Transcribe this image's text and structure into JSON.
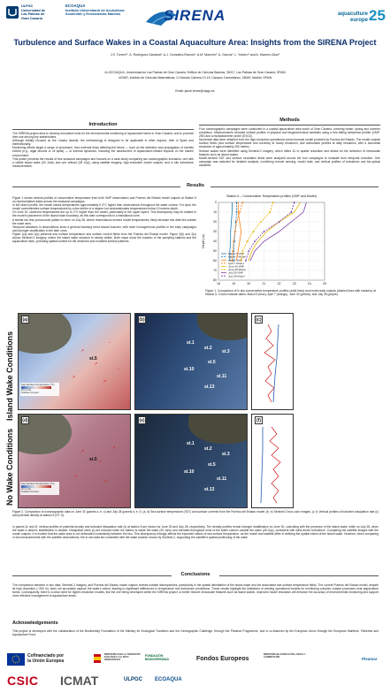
{
  "header": {
    "ulpgc_lines": [
      "ULPGC",
      "Universidad de",
      "Las Palmas de",
      "Gran Canaria"
    ],
    "ecoaqua_lines": [
      "ECOAQUA",
      "Instituto Universitario de Acuicultura",
      "Sostenible y Ecosistemas Marinos"
    ],
    "project": "SIRENA",
    "conference_lines": [
      "aquaculture",
      "europe"
    ],
    "conference_number": "25"
  },
  "title": "Turbulence and Surface Wakes in a Coastal Aquaculture Area: Insights from the SIRENA Project",
  "authors": "J.S. Torres¹*, A. Rodríguez-Santana¹, A.J. González-Ramos¹, A.M. Mancho², A. García¹, L. Yubero¹ and A. Marrero-Díaz¹",
  "affiliations": [
    "¹IU-ECOAQUA, Universidad de Las Palmas de Gran Canaria, Edificio de Ciencias Básicas, 35017, Las Palmas de Gran Canaria, SPAIN",
    "²ICMAT, Instituto de Ciencias Matemáticas, C/ Nicolás Cabrera 13-15, Campus Cantoblanco, 28049, Madrid, SPAIN"
  ],
  "email": "Email: jacob.torres@ulpgc.es",
  "introduction": {
    "heading": "Introduction",
    "paragraphs": [
      "The SIRENA project aims to develop innovative tools for the environmental monitoring of aquaculture farms in Gran Canaria, and to promote their use among key stakeholders.",
      "Although initially focused on the Canary Islands, the methodology is designed to be applicable in other regions, both in Spain and internationally.",
      "Monitoring efforts target a range of processes, from external flows affecting the farms — such as the detection and propagation of harmful events (e.g., algal blooms or oil spills) — to internal dynamics, including the assessment of aquaculture-related impacts on the marine environment.",
      "This poster presents the results of four seasonal campaigns and focuses on a case study comparing two oceanographic scenarios: one with a visible island wake (30 June) and one without (28 July), using satellite imagery, high-resolution model outputs, and in situ turbulence measurements."
    ]
  },
  "methods": {
    "heading": "Methods",
    "paragraphs": [
      "Four oceanographic campaigns were conducted in a coastal aquaculture area south of Gran Canaria, covering winter, spring and summer conditions. Measurements included vertical profiles of physical and biogeochemical variables using a free-falling turbulence profiler (VMP-250) and a multiparameter probe (EXO2).",
      "Numerical data were obtained from the high-resolution operational ocean forecast model provided by Puertos del Estado. The model outputs surface fields (sea surface temperature and currents) at hourly resolution, and subsurface profiles at daily resolution, with a horizontal resolution of approximately 250 meters.",
      "Surface wakes were identified using Sentinel-2 imagery, which offers 10 m spatial resolution and allows for the detection of mesoscale features such as island wakes.",
      "Model-derived SST and surface circulation fields were analyzed across the four campaigns to evaluate their temporal evolution. One campaign was selected for detailed analysis, combining remote sensing, model data, and vertical profiles of turbulence and bio-optical variables."
    ]
  },
  "results": {
    "heading": "Results",
    "paragraphs": [
      "Figure 1 shows vertical profiles of conservative temperature from both VMP observations and Puertos del Estado model outputs at Station 5 on representative dates across the seasonal campaigns.",
      "In the March profile, the model shows temperatures approximately 0.3°C higher than observations throughout the water column. For April, the model overestimates surface temperatures by a few tenths of a degree but underestimates temperatures below 10 meters depth.",
      "On June 30, observed temperatures are up to 2°C higher than the model, particularly in the upper layers. This discrepancy may be related to the model's placement of the island wake boundary, as this date corresponds to a transitional zone.",
      "A similar but less pronounced pattern is seen on July 28, where observations exceed model temperatures, likely because this date lies outside the wake area.",
      "Temporal variations in observations show a general warming trend toward summer, with more homogeneous profiles in the early campaigns and stronger stratification in the later ones.",
      "Figure 2(a) and 2(d) presents sea surface temperature and surface current fields from the Puertos del Estado model. Figure 2(b) and 2(c) shows Sentinel-2 imagery, where the island wake structure is clearly visible. Both maps show the location of the sampling stations and the aquaculture sites, providing spatial context for the observed and modeled surface patterns."
    ]
  },
  "figure1": {
    "caption": "Figure 1. Comparison of in situ conservative temperature profiles (solid lines) and model daily outputs (dashed lines with markers) at Station 5. Colors indicate dates: March 5 (blue), April 7 (orange), June 30 (yellow), and July 28 (purple)."
  },
  "chart_data": {
    "type": "line",
    "title": "Station 5 – Conservative Temperature profiles (VMP and Model)",
    "xlabel": "",
    "ylabel": "Depth (m)",
    "xlim": [
      18,
      25
    ],
    "ylim": [
      0,
      80
    ],
    "y_inverted": true,
    "grid": true,
    "legend_placement": "bottom-left",
    "series": [
      {
        "name": "March 5 VMP",
        "style": "solid",
        "color": "#1f77b4",
        "x": [
          18.9,
          18.9,
          18.85,
          18.8,
          18.8,
          18.75,
          18.75
        ],
        "y": [
          0,
          10,
          20,
          30,
          40,
          50,
          60
        ]
      },
      {
        "name": "March 5 Model",
        "style": "dashed",
        "color": "#1f77b4",
        "x": [
          19.2,
          19.2,
          19.15,
          19.1,
          19.05,
          19.0,
          19.0
        ],
        "y": [
          0,
          10,
          20,
          30,
          40,
          50,
          60
        ]
      },
      {
        "name": "April 7 VMP",
        "style": "solid",
        "color": "#ff7f0e",
        "x": [
          19.3,
          19.3,
          19.4,
          19.5,
          19.4,
          19.3,
          19.2
        ],
        "y": [
          0,
          10,
          20,
          30,
          40,
          50,
          60
        ]
      },
      {
        "name": "April 7 Model",
        "style": "dashed",
        "color": "#ff7f0e",
        "x": [
          19.6,
          19.4,
          19.2,
          19.1,
          19.0,
          18.95,
          18.9
        ],
        "y": [
          0,
          10,
          20,
          30,
          40,
          50,
          60
        ]
      },
      {
        "name": "June 30 VMP",
        "style": "solid",
        "color": "#e8b400",
        "x": [
          23.4,
          23.0,
          22.0,
          21.2,
          20.6,
          20.2,
          20.0
        ],
        "y": [
          0,
          10,
          20,
          30,
          40,
          50,
          60
        ]
      },
      {
        "name": "June 30 Model",
        "style": "dashed",
        "color": "#e8b400",
        "x": [
          21.6,
          21.4,
          20.8,
          20.3,
          19.9,
          19.6,
          19.5
        ],
        "y": [
          0,
          10,
          20,
          30,
          40,
          50,
          60
        ]
      },
      {
        "name": "July 28 VMP",
        "style": "solid",
        "color": "#7b3fa8",
        "x": [
          23.8,
          23.6,
          22.8,
          22.0,
          21.0,
          20.4,
          20.1
        ],
        "y": [
          0,
          10,
          20,
          30,
          40,
          50,
          60
        ]
      },
      {
        "name": "July 28 Model",
        "style": "dashed",
        "color": "#7b3fa8",
        "x": [
          23.0,
          22.8,
          22.0,
          21.0,
          20.4,
          20.0,
          19.8
        ],
        "y": [
          0,
          10,
          20,
          30,
          40,
          50,
          60
        ]
      }
    ]
  },
  "side_labels": {
    "top": "Island Wake Conditions",
    "bottom": "No Wake Conditions"
  },
  "panels": {
    "a": {
      "letter": "(a)",
      "date": "30/06"
    },
    "b": {
      "letter": "(b)"
    },
    "c": {
      "letter": "(c)"
    },
    "d": {
      "letter": "(d)",
      "date": "28/07"
    },
    "e": {
      "letter": "(e)"
    },
    "f": {
      "letter": "(f)"
    }
  },
  "map_legend": {
    "label": "Sea Surface Temperature (ºC)",
    "ticks": [
      "22",
      "23",
      "24",
      "25"
    ],
    "current_label": "Surface Current",
    "current_scale": "(0.1 m/s)"
  },
  "stations": [
    "st.1",
    "st.2",
    "st.3",
    "st.4",
    "st.5",
    "st.6",
    "st.7",
    "st.8",
    "st.9",
    "st.10",
    "st.11",
    "st.12",
    "st.13"
  ],
  "figure2": {
    "caption": "Figure 2. Comparison of oceanographic data on June 30 (panels a, b, c) and July 28 (panels d, e, f). (a, d) Sea surface temperature (SST) and surface currents from the Puertos del Estado model; (b, e) Sentinel-2 true-color images; (c, f) Vertical profiles of turbulent dissipation rate (ε) and potential density at station 5 (ST. 5)."
  },
  "results2": "In panels 2c and 2f, vertical profiles of potential density and turbulent dissipation rate (ε) at station 5 are shown for June 30 and July 28, respectively. The density profiles reveal stronger stratification on June 30, coinciding with the presence of the island wake, while on July 28, when the wake is absent, stratification is weaker. Dissipation rates (ε) are reduced when the station is inside the wake (30 June) and elevated throughout most of the water column outside the wake (28 July), consistent with wind-driven turbulence. Comparing the satellite images with the model outputs, it is evident that the wake area is not delineated consistently between the two. This discrepancy strongly affects the expected values of sea surface temperature, as the model and satellite differ in defining the spatial extent of the island wake. However, when comparing in situ measurements with the satellite observations, the in-situ data are consistent with the wake location shown by Sentinel-2, supporting the satellite's spatial positioning of the wake.",
  "conclusions": {
    "heading": "Conclusions",
    "text": "The comparison between in situ data, Sentinel-2 imagery, and Puertos del Estado model outputs reveals notable discrepancies, particularly in the spatial delimitation of the island wake and the associated sea surface temperature fields. The current Puertos del Estado model, despite its high resolution (~250 m), does not accurately capture the wake's extent, leading to significant differences in temperature and turbulence predictions. These results highlight the limitations of existing operational models for monitoring complex coastal processes near aquaculture farms. Consequently, there is a clear need for higher-resolution models, like the one being developed within the SIRENA project, to better resolve mesoscale features such as island wakes. Improved model resolution will enhance the accuracy of environmental monitoring and support more effective management of aquaculture areas."
  },
  "acknowledgements": {
    "heading": "Acknowledgements",
    "text": "This project is developed with the collaboration of the Biodiversity Foundation of the Ministry for Ecological Transition and the Demographic Challenge, through the Pleamar Programme, and is co-financed by the European Union through the European Maritime, Fisheries and Aquaculture Fund."
  },
  "sponsors": {
    "eu_line1": "Cofinanciado por",
    "eu_line2": "la Unión Europea",
    "ministry": "MINISTERIO PARA LA TRANSICIÓN ECOLÓGICA Y EL RETO DEMOGRÁFICO",
    "fundacion": "FUNDACIÓN BIODIVERSIDAD",
    "fondos": "Fondos Europeos",
    "csic": "CSIC",
    "icmat": "ICMAT",
    "ulpgc": "ULPGC",
    "ecoaqua": "ECOAQUA",
    "mapa": "MINISTERIO DE AGRICULTURA, PESCA Y ALIMENTACIÓN",
    "pleamar": "Pleamar"
  }
}
